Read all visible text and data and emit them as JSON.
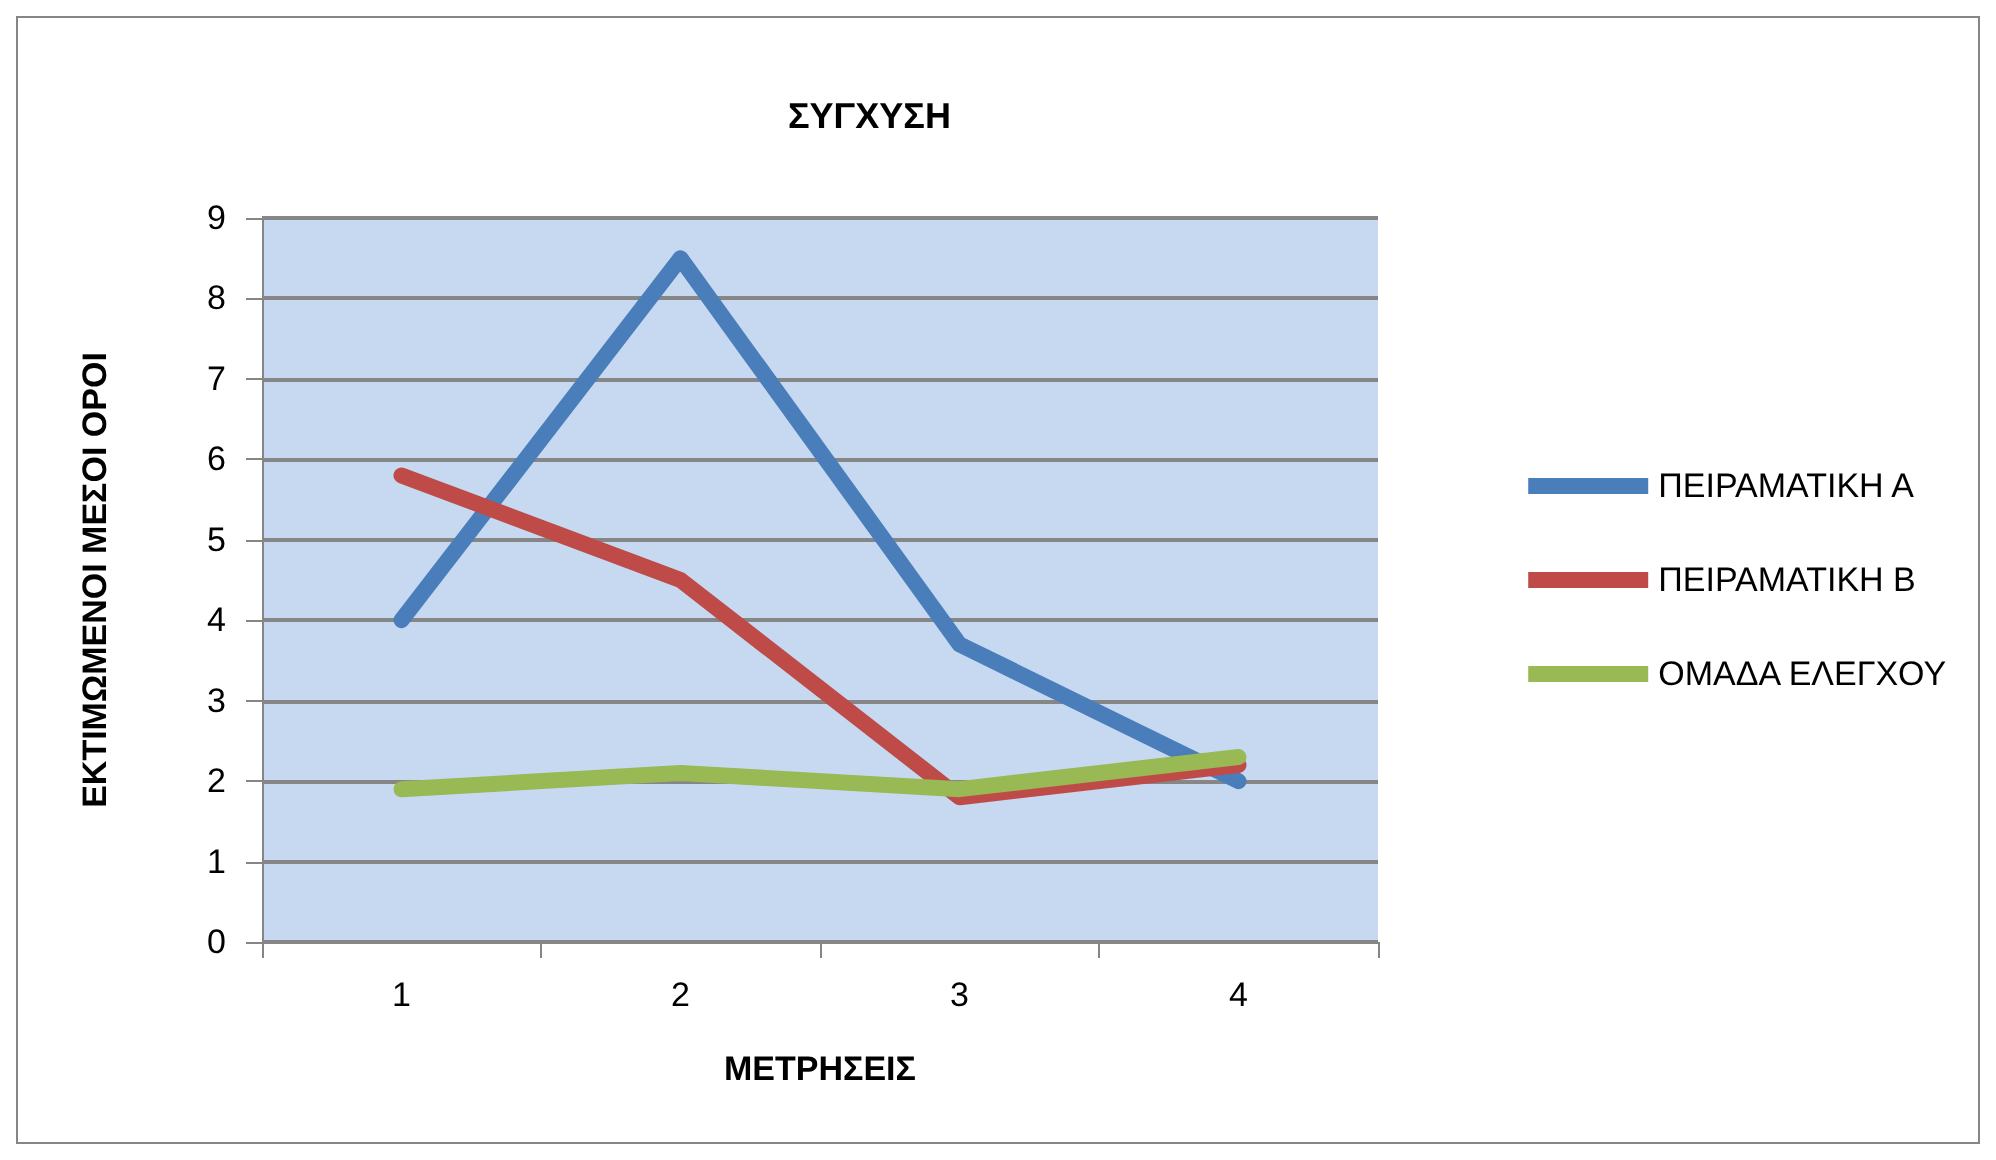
{
  "chart_data": {
    "type": "line",
    "title": "ΣΥΓΧΥΣΗ",
    "xlabel": "ΜΕΤΡΗΣΕΙΣ",
    "ylabel": "ΕΚΤΙΜΩΜΕΝΟΙ ΜΕΣΟΙ ΟΡΟΙ",
    "categories": [
      "1",
      "2",
      "3",
      "4"
    ],
    "series": [
      {
        "name": "ΠΕΙΡΑΜΑΤΙΚΗ Α",
        "color": "#4a7ebb",
        "values": [
          4.0,
          8.5,
          3.7,
          2.0
        ]
      },
      {
        "name": "ΠΕΙΡΑΜΑΤΙΚΗ Β",
        "color": "#be4b48",
        "values": [
          5.8,
          4.5,
          1.8,
          2.2
        ]
      },
      {
        "name": "ΟΜΑΔΑ ΕΛΕΓΧΟΥ",
        "color": "#98b954",
        "values": [
          1.9,
          2.1,
          1.9,
          2.3
        ]
      }
    ],
    "ylim": [
      0,
      9
    ],
    "yticks": [
      0,
      1,
      2,
      3,
      4,
      5,
      6,
      7,
      8,
      9
    ],
    "grid": "y",
    "legend": "right",
    "marker": "none",
    "line_style": "solid"
  }
}
